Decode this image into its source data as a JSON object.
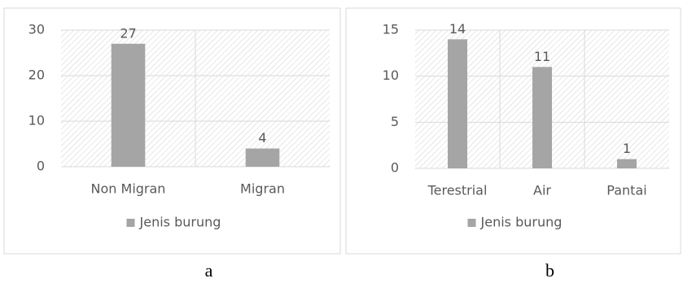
{
  "chart_data": [
    {
      "type": "bar",
      "caption": "a",
      "categories": [
        "Non Migran",
        "Migran"
      ],
      "series": [
        {
          "name": "Jenis burung",
          "color": "#a5a5a5",
          "values": [
            27,
            4
          ]
        }
      ],
      "ylim": [
        0,
        30
      ],
      "yticks": [
        0,
        10,
        20,
        30
      ],
      "grid": true,
      "legend": "bottom",
      "data_labels": true
    },
    {
      "type": "bar",
      "caption": "b",
      "categories": [
        "Terestrial",
        "Air",
        "Pantai"
      ],
      "series": [
        {
          "name": "Jenis burung",
          "color": "#a5a5a5",
          "values": [
            14,
            11,
            1
          ]
        }
      ],
      "ylim": [
        0,
        15
      ],
      "yticks": [
        0,
        5,
        10,
        15
      ],
      "grid": true,
      "legend": "bottom",
      "data_labels": true
    }
  ]
}
